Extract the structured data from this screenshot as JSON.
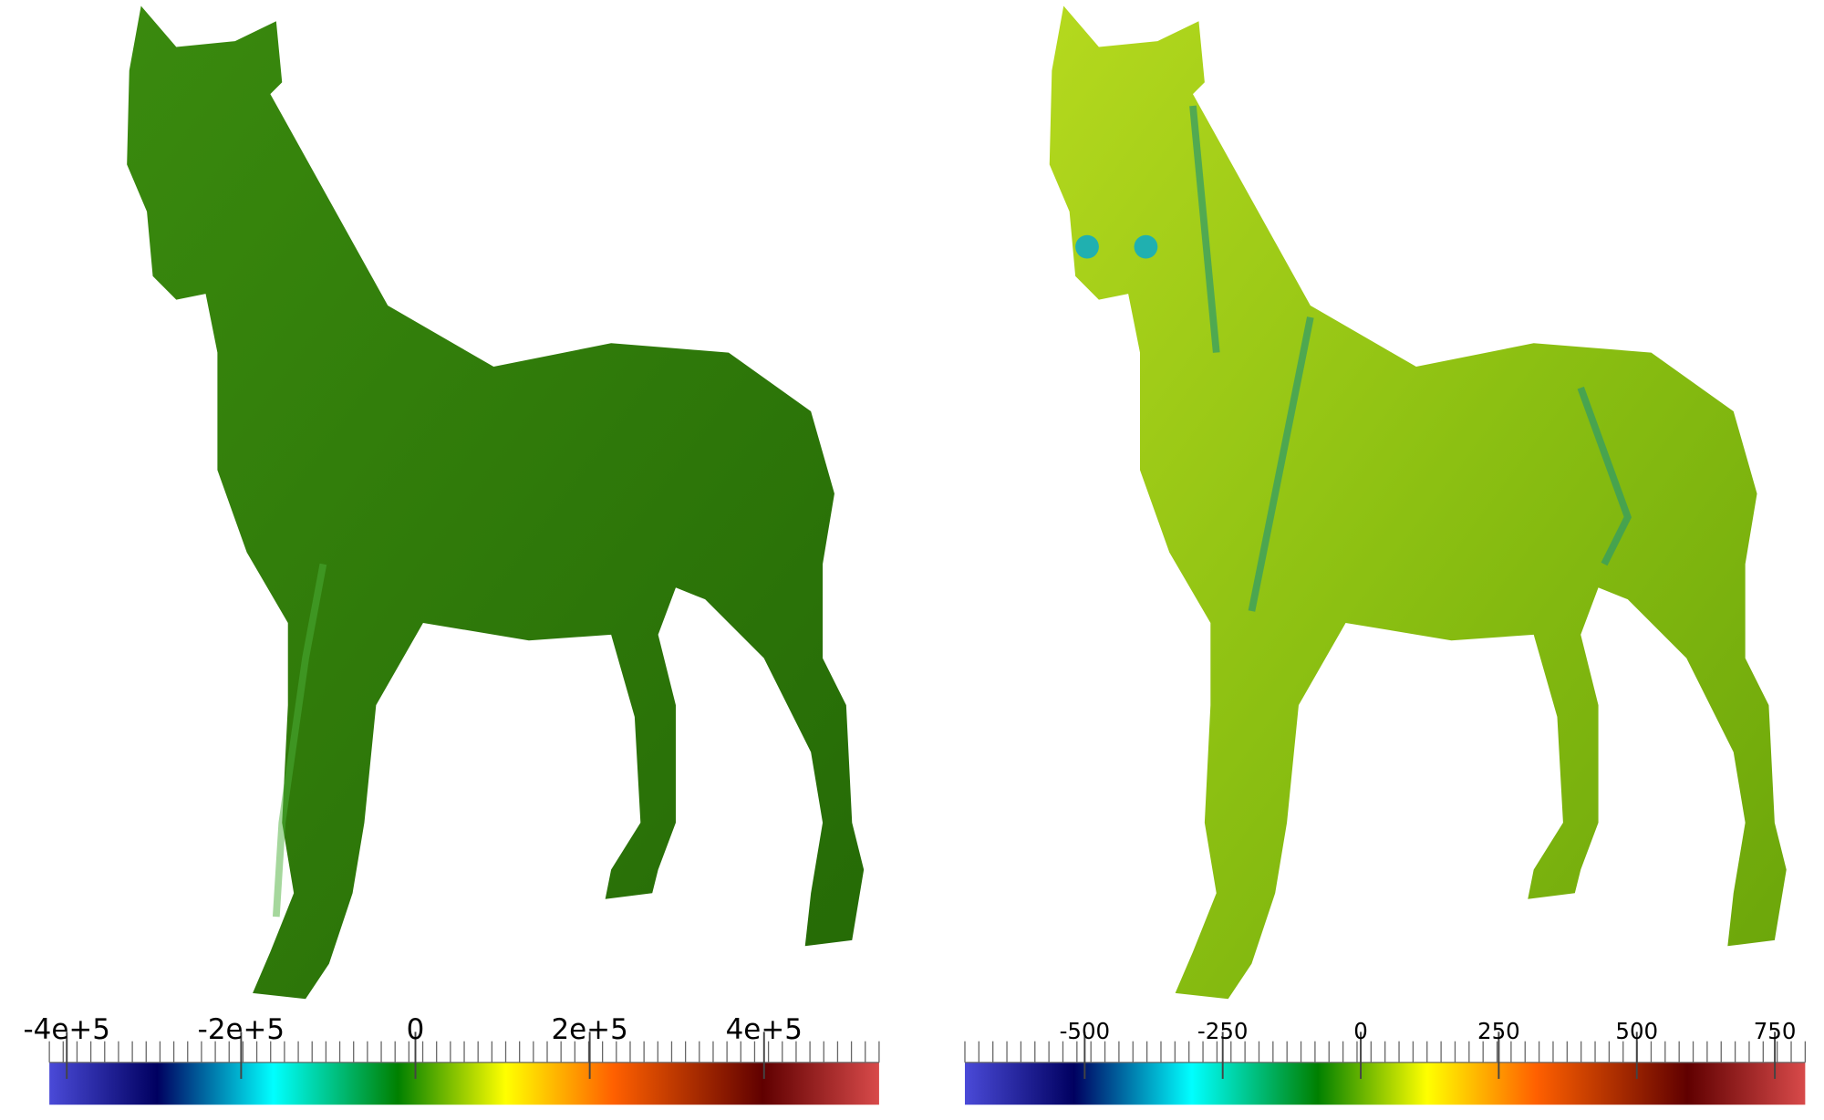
{
  "panels": [
    {
      "colorbar": {
        "range": [
          -420000,
          532000
        ],
        "ticks": [
          {
            "value": -400000,
            "label": "-4e+5"
          },
          {
            "value": -200000,
            "label": "-2e+5"
          },
          0,
          {
            "value": 200000,
            "label": "2e+5"
          },
          {
            "value": 400000,
            "label": "4e+5"
          }
        ]
      }
    },
    {
      "colorbar": {
        "range": [
          -717,
          805
        ],
        "ticks": [
          -500,
          -250,
          0,
          250,
          500,
          750
        ]
      }
    }
  ]
}
